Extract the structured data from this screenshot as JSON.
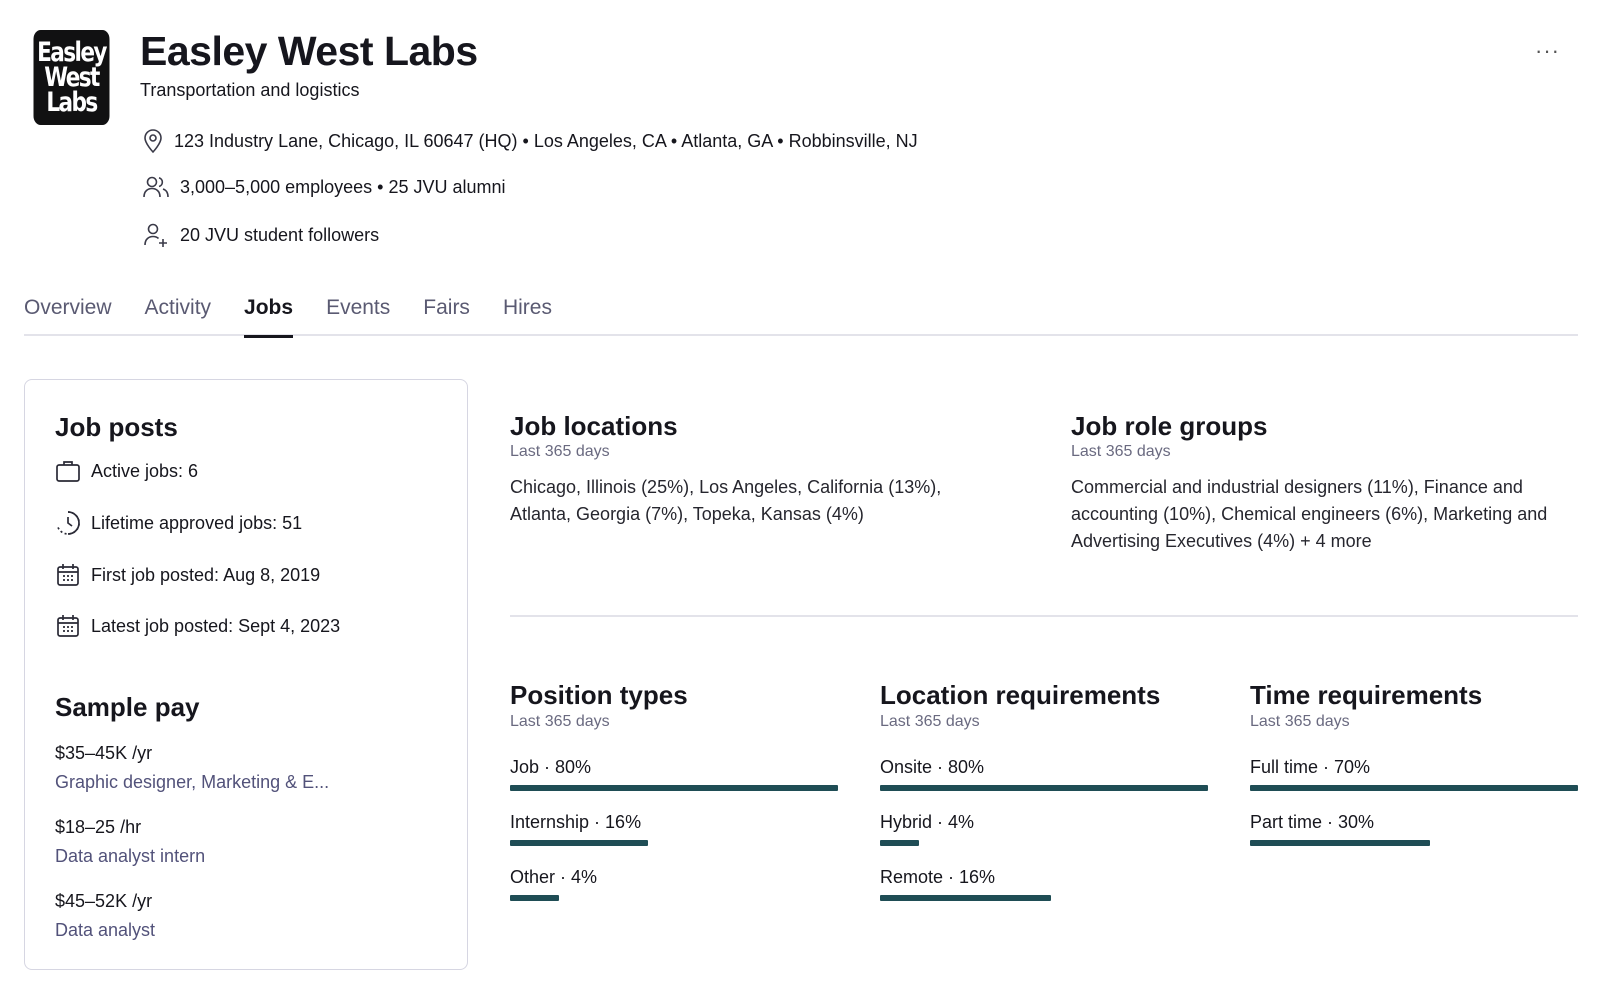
{
  "company": {
    "logo_lines": [
      "Easley",
      "West",
      "Labs"
    ],
    "name": "Easley West Labs",
    "industry": "Transportation and logistics",
    "more_label": "···",
    "locations": "123 Industry Lane, Chicago, IL 60647 (HQ) • Los Angeles, CA • Atlanta, GA • Robbinsville, NJ",
    "employees": "3,000–5,000 employees • 25 JVU alumni",
    "followers": "20 JVU student followers"
  },
  "tabs": [
    {
      "label": "Overview",
      "active": false
    },
    {
      "label": "Activity",
      "active": false
    },
    {
      "label": "Jobs",
      "active": true
    },
    {
      "label": "Events",
      "active": false
    },
    {
      "label": "Fairs",
      "active": false
    },
    {
      "label": "Hires",
      "active": false
    }
  ],
  "job_posts": {
    "title": "Job posts",
    "active": "Active jobs: 6",
    "lifetime": "Lifetime approved jobs: 51",
    "first": "First job posted: Aug 8, 2019",
    "latest": "Latest job posted: Sept 4, 2023"
  },
  "sample_pay": {
    "title": "Sample pay",
    "items": [
      {
        "amount": "$35–45K /yr",
        "role": "Graphic designer, Marketing & E..."
      },
      {
        "amount": "$18–25 /hr",
        "role": "Data analyst intern"
      },
      {
        "amount": "$45–52K /yr",
        "role": "Data analyst"
      }
    ]
  },
  "job_locations": {
    "title": "Job locations",
    "period": "Last 365 days",
    "text": "Chicago, Illinois (25%), Los Angeles, California (13%), Atlanta, Georgia (7%), Topeka, Kansas (4%)"
  },
  "job_role_groups": {
    "title": "Job role groups",
    "period": "Last 365 days",
    "text": "Commercial and industrial designers (11%), Finance and accounting (10%), Chemical engineers (6%), Marketing and Advertising Executives (4%) + 4 more"
  },
  "position_types": {
    "title": "Position types",
    "period": "Last 365 days",
    "items": [
      {
        "label": "Job · 80%",
        "value": 100
      },
      {
        "label": "Internship · 16%",
        "value": 42
      },
      {
        "label": "Other · 4%",
        "value": 15
      }
    ]
  },
  "location_requirements": {
    "title": "Location requirements",
    "period": "Last 365 days",
    "items": [
      {
        "label": "Onsite · 80%",
        "value": 100
      },
      {
        "label": "Hybrid · 4%",
        "value": 12
      },
      {
        "label": "Remote · 16%",
        "value": 52
      }
    ]
  },
  "time_requirements": {
    "title": "Time requirements",
    "period": "Last 365 days",
    "items": [
      {
        "label": "Full time · 70%",
        "value": 100
      },
      {
        "label": "Part time · 30%",
        "value": 55
      }
    ]
  },
  "colors": {
    "bar": "#1f4d55"
  }
}
